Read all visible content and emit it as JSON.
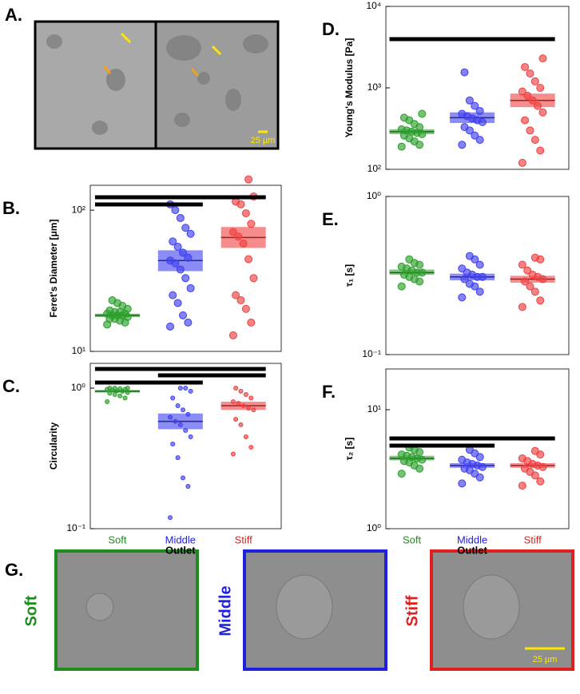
{
  "image_panels": {
    "panel_a": "A.",
    "scale_a": "25 µm",
    "panel_g": "G.",
    "scale_g": "25 µm",
    "cells": [
      {
        "label": "Soft",
        "color": "#1e8c1e"
      },
      {
        "label": "Middle",
        "color": "#2020e0"
      },
      {
        "label": "Stiff",
        "color": "#e02020"
      }
    ]
  },
  "chart_data": [
    {
      "type": "box",
      "panel": "B.",
      "ylabel": "Feret's Diameter [μm]",
      "log": true,
      "categories": [
        null,
        null,
        null
      ],
      "ylim": [
        10,
        150
      ],
      "yticks": [
        {
          "value": 10,
          "label": "10¹"
        },
        {
          "value": 100,
          "label": "10²"
        }
      ],
      "groups": [
        {
          "color": "#2ca02c",
          "median": 18,
          "box": [
            17.5,
            18.5
          ],
          "values": [
            15.5,
            16,
            16.5,
            17,
            17,
            17.5,
            18,
            18,
            18,
            18.5,
            18.5,
            19,
            19,
            19.5,
            20,
            21,
            22,
            23
          ]
        },
        {
          "color": "#4040f0",
          "median": 44,
          "box": [
            37,
            52
          ],
          "values": [
            15,
            16,
            18,
            22,
            25,
            28,
            33,
            38,
            42,
            44,
            46,
            50,
            55,
            60,
            68,
            75,
            88,
            100,
            110
          ]
        },
        {
          "color": "#f04040",
          "median": 64,
          "box": [
            54,
            76
          ],
          "values": [
            13,
            16,
            20,
            23,
            25,
            33,
            45,
            58,
            65,
            70,
            80,
            95,
            110,
            115,
            125,
            165
          ]
        }
      ]
    },
    {
      "type": "box",
      "panel": "C.",
      "ylabel": "Circularity",
      "xlabel": "Outlet",
      "log": true,
      "categories": [
        "Soft",
        "Middle",
        "Stiff"
      ],
      "ylim": [
        0.1,
        1.5
      ],
      "yticks": [
        {
          "value": 0.1,
          "label": "10⁻¹"
        },
        {
          "value": 1,
          "label": "10⁰"
        }
      ],
      "groups": [
        {
          "color": "#2ca02c",
          "median": 0.95,
          "box": [
            0.93,
            0.97
          ],
          "values": [
            0.8,
            0.85,
            0.88,
            0.9,
            0.92,
            0.93,
            0.95,
            0.96,
            0.97,
            0.98,
            0.98,
            0.99,
            1.0,
            1.0,
            1.0
          ]
        },
        {
          "color": "#4040f0",
          "median": 0.58,
          "box": [
            0.51,
            0.66
          ],
          "values": [
            0.12,
            0.2,
            0.23,
            0.32,
            0.4,
            0.45,
            0.5,
            0.55,
            0.58,
            0.62,
            0.65,
            0.7,
            0.75,
            0.85,
            0.95,
            1.0,
            1.0
          ]
        },
        {
          "color": "#f04040",
          "median": 0.75,
          "box": [
            0.7,
            0.8
          ],
          "values": [
            0.34,
            0.38,
            0.45,
            0.55,
            0.6,
            0.7,
            0.72,
            0.75,
            0.78,
            0.8,
            0.85,
            0.9,
            0.95,
            1.0
          ]
        }
      ]
    },
    {
      "type": "box",
      "panel": "D.",
      "ylabel": "Young's Modulus [Pa]",
      "log": true,
      "categories": [
        null,
        null,
        null
      ],
      "ylim": [
        100,
        10000
      ],
      "yticks": [
        {
          "value": 100,
          "label": "10²"
        },
        {
          "value": 1000,
          "label": "10³"
        },
        {
          "value": 10000,
          "label": "10⁴"
        }
      ],
      "groups": [
        {
          "color": "#2ca02c",
          "median": 290,
          "box": [
            270,
            310
          ],
          "values": [
            190,
            200,
            220,
            240,
            260,
            270,
            280,
            290,
            300,
            310,
            330,
            360,
            400,
            430,
            480
          ]
        },
        {
          "color": "#4040f0",
          "median": 430,
          "box": [
            370,
            500
          ],
          "values": [
            200,
            230,
            260,
            300,
            330,
            380,
            400,
            420,
            450,
            480,
            520,
            600,
            700,
            1550
          ]
        },
        {
          "color": "#f04040",
          "median": 700,
          "box": [
            580,
            850
          ],
          "values": [
            120,
            170,
            230,
            300,
            400,
            500,
            600,
            700,
            800,
            900,
            1000,
            1200,
            1500,
            1800,
            2300
          ]
        }
      ]
    },
    {
      "type": "box",
      "panel": "E.",
      "ylabel": "τ₁ [s]",
      "log": true,
      "categories": [
        null,
        null,
        null
      ],
      "ylim": [
        0.1,
        1
      ],
      "yticks": [
        {
          "value": 0.1,
          "label": "10⁻¹"
        },
        {
          "value": 1,
          "label": "10⁰"
        }
      ],
      "groups": [
        {
          "color": "#2ca02c",
          "median": 0.33,
          "box": [
            0.32,
            0.345
          ],
          "values": [
            0.27,
            0.29,
            0.3,
            0.31,
            0.32,
            0.33,
            0.33,
            0.34,
            0.35,
            0.36,
            0.37,
            0.38,
            0.4
          ]
        },
        {
          "color": "#4040f0",
          "median": 0.31,
          "box": [
            0.295,
            0.325
          ],
          "values": [
            0.23,
            0.25,
            0.27,
            0.28,
            0.3,
            0.31,
            0.31,
            0.32,
            0.33,
            0.35,
            0.37,
            0.4,
            0.42
          ]
        },
        {
          "color": "#f04040",
          "median": 0.3,
          "box": [
            0.285,
            0.315
          ],
          "values": [
            0.2,
            0.22,
            0.25,
            0.27,
            0.29,
            0.3,
            0.31,
            0.32,
            0.34,
            0.37,
            0.4,
            0.41
          ]
        }
      ]
    },
    {
      "type": "box",
      "panel": "F.",
      "ylabel": "τ₂ [s]",
      "xlabel": "Outlet",
      "log": true,
      "categories": [
        "Soft",
        "Middle",
        "Stiff"
      ],
      "ylim": [
        1,
        22
      ],
      "yticks": [
        {
          "value": 1,
          "label": "10⁰"
        },
        {
          "value": 10,
          "label": "10¹"
        }
      ],
      "groups": [
        {
          "color": "#2ca02c",
          "median": 3.9,
          "box": [
            3.75,
            4.1
          ],
          "values": [
            2.9,
            3.2,
            3.4,
            3.6,
            3.7,
            3.8,
            3.9,
            4.0,
            4.1,
            4.2,
            4.4,
            4.6,
            4.8
          ]
        },
        {
          "color": "#4040f0",
          "median": 3.4,
          "box": [
            3.25,
            3.55
          ],
          "values": [
            2.4,
            2.7,
            2.9,
            3.1,
            3.2,
            3.3,
            3.4,
            3.5,
            3.6,
            3.8,
            4.0,
            4.3,
            4.6
          ]
        },
        {
          "color": "#f04040",
          "median": 3.4,
          "box": [
            3.25,
            3.55
          ],
          "values": [
            2.3,
            2.5,
            2.8,
            3.0,
            3.2,
            3.3,
            3.4,
            3.5,
            3.7,
            3.9,
            4.2,
            4.5
          ]
        }
      ]
    }
  ]
}
